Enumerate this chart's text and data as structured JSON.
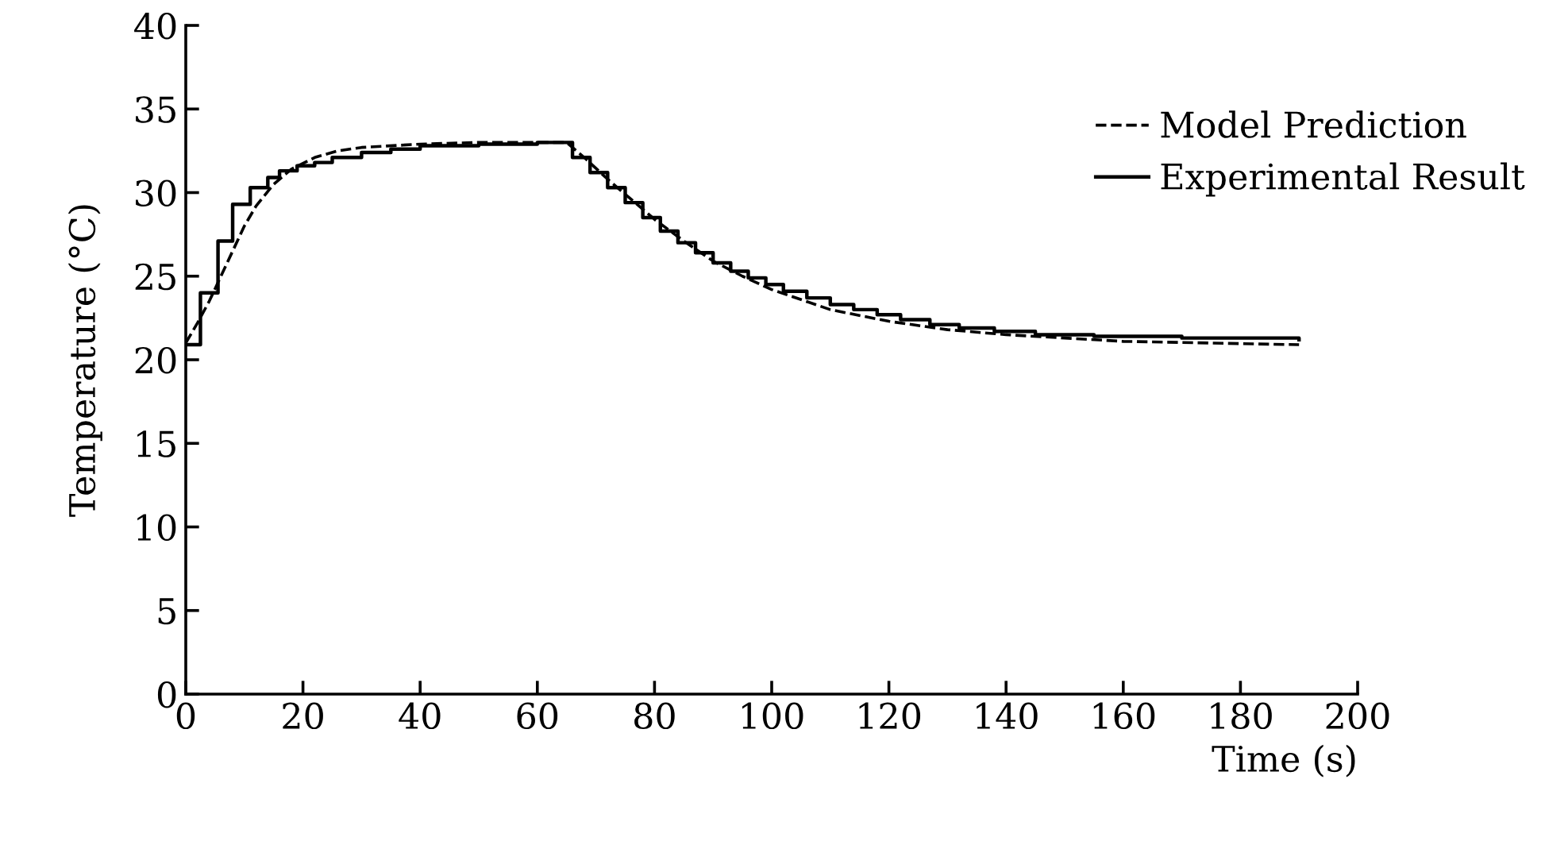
{
  "chart_data": {
    "type": "line",
    "xlabel": "Time (s)",
    "ylabel": "Temperature (°C)",
    "xlim": [
      0,
      200
    ],
    "xticks": [
      0,
      20,
      40,
      60,
      80,
      100,
      120,
      140,
      160,
      180,
      200
    ],
    "ylim": [
      0,
      40
    ],
    "yticks": [
      0,
      5,
      10,
      15,
      20,
      25,
      30,
      35,
      40
    ],
    "grid": false,
    "legend": "top right",
    "series": [
      {
        "name": "Model Prediction",
        "line_style": "dashed",
        "color": "#000000",
        "x": [
          0,
          2,
          4,
          6,
          8,
          10,
          12,
          15,
          18,
          22,
          26,
          30,
          40,
          50,
          65,
          68,
          72,
          76,
          80,
          85,
          90,
          95,
          100,
          110,
          120,
          130,
          140,
          150,
          160,
          175,
          190
        ],
        "values": [
          21.0,
          22.2,
          23.5,
          25.0,
          26.5,
          28.0,
          29.2,
          30.5,
          31.4,
          32.1,
          32.5,
          32.7,
          32.9,
          33.0,
          33.0,
          32.1,
          30.8,
          29.6,
          28.4,
          27.1,
          25.9,
          25.0,
          24.2,
          23.0,
          22.3,
          21.8,
          21.5,
          21.3,
          21.1,
          21.0,
          20.9
        ]
      },
      {
        "name": "Experimental Result",
        "type": "step",
        "line_style": "solid",
        "color": "#000000",
        "x": [
          0,
          2.5,
          5.5,
          8,
          11,
          14,
          16,
          19,
          22,
          25,
          30,
          35,
          40,
          50,
          60,
          66,
          69,
          72,
          75,
          78,
          81,
          84,
          87,
          90,
          93,
          96,
          99,
          102,
          106,
          110,
          114,
          118,
          122,
          127,
          132,
          138,
          145,
          155,
          170,
          190
        ],
        "values": [
          20.9,
          24.0,
          27.1,
          29.3,
          30.3,
          30.9,
          31.3,
          31.6,
          31.8,
          32.1,
          32.4,
          32.6,
          32.8,
          32.9,
          33.0,
          32.1,
          31.2,
          30.3,
          29.4,
          28.5,
          27.7,
          27.0,
          26.4,
          25.8,
          25.3,
          24.9,
          24.5,
          24.1,
          23.7,
          23.3,
          23.0,
          22.7,
          22.4,
          22.1,
          21.9,
          21.7,
          21.5,
          21.4,
          21.3,
          21.2
        ]
      }
    ]
  }
}
